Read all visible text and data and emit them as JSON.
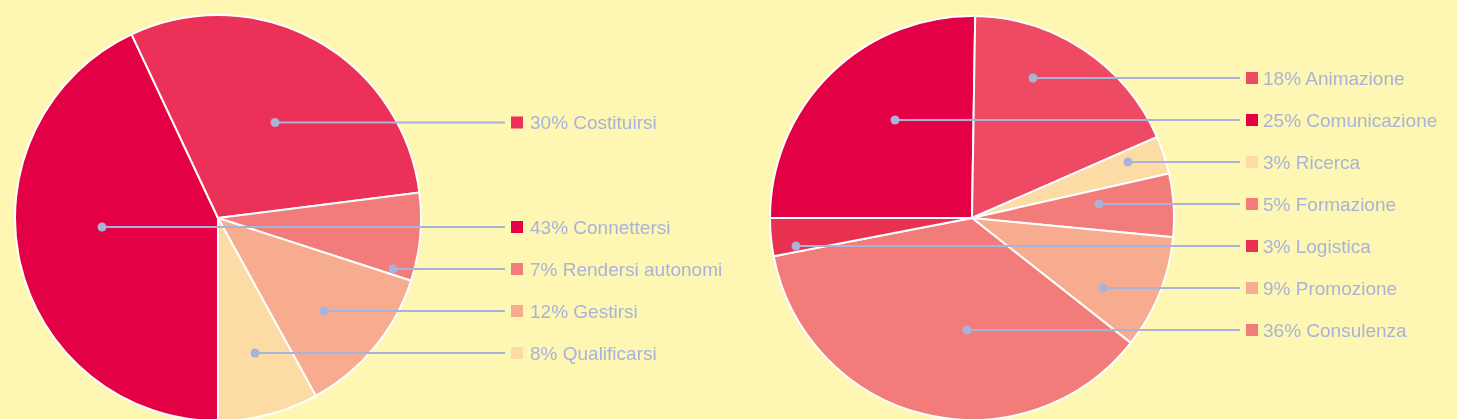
{
  "chart_data": [
    {
      "type": "pie",
      "categories": [
        "Connettersi",
        "Costituirsi",
        "Rendersi autonomi",
        "Gestirsi",
        "Qualificarsi"
      ],
      "values": [
        43,
        30,
        7,
        12,
        8
      ],
      "value_labels": [
        "43%",
        "30%",
        "7%",
        "12%",
        "8%"
      ],
      "colors": [
        "#e30045",
        "#eb3157",
        "#f27c7a",
        "#f7ab8f",
        "#fcdca4"
      ],
      "legend": "right"
    },
    {
      "type": "pie",
      "categories": [
        "Comunicazione",
        "Animazione",
        "Ricerca",
        "Formazione",
        "Promozione",
        "Consulenza",
        "Logistica"
      ],
      "values": [
        25,
        18,
        3,
        5,
        9,
        36,
        3
      ],
      "value_labels": [
        "25%",
        "18%",
        "3%",
        "5%",
        "9%",
        "36%",
        "3%"
      ],
      "colors": [
        "#e30045",
        "#ee4a64",
        "#fcdca4",
        "#f27c7a",
        "#f7ab8f",
        "#f27c7a",
        "#e8304f"
      ],
      "legend": "right"
    }
  ]
}
